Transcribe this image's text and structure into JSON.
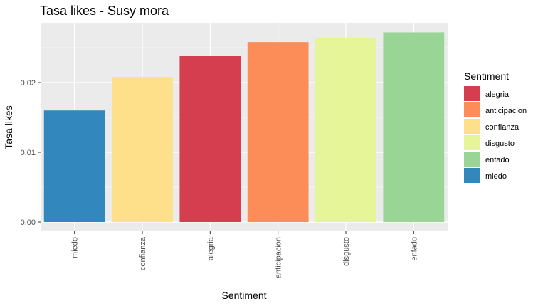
{
  "chart_data": {
    "type": "bar",
    "title": "Tasa likes - Susy mora",
    "xlabel": "Sentiment",
    "ylabel": "Tasa likes",
    "categories": [
      "miedo",
      "confianza",
      "alegria",
      "anticipacion",
      "disgusto",
      "enfado"
    ],
    "values": [
      0.016,
      0.0208,
      0.0238,
      0.0258,
      0.0264,
      0.0272
    ],
    "bar_colors": [
      "#3288BD",
      "#FEE08B",
      "#D53E4F",
      "#FC8D59",
      "#E6F598",
      "#99D594"
    ],
    "ylim": [
      0,
      0.0285
    ],
    "yticks": [
      0.0,
      0.01,
      0.02
    ],
    "ytick_labels": [
      "0.00",
      "0.01",
      "0.02"
    ],
    "grid": true,
    "legend": {
      "title": "Sentiment",
      "placement": "right",
      "entries": [
        {
          "label": "alegria",
          "color": "#D53E4F"
        },
        {
          "label": "anticipacion",
          "color": "#FC8D59"
        },
        {
          "label": "confianza",
          "color": "#FEE08B"
        },
        {
          "label": "disgusto",
          "color": "#E6F598"
        },
        {
          "label": "enfado",
          "color": "#99D594"
        },
        {
          "label": "miedo",
          "color": "#3288BD"
        }
      ]
    },
    "panel_background": "#EBEBEB",
    "grid_color": "#FFFFFF"
  }
}
